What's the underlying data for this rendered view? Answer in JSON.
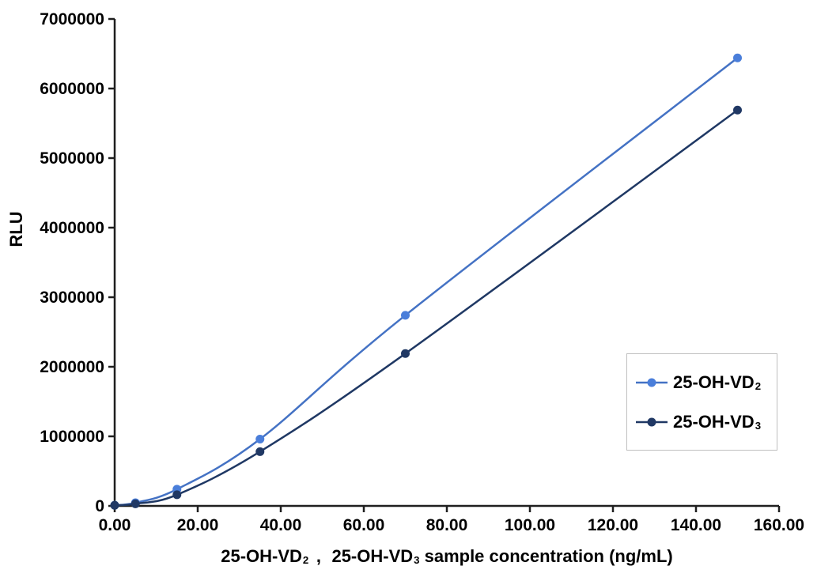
{
  "page": {
    "background": "#ffffff"
  },
  "chart_data": {
    "type": "line",
    "title": "",
    "ylabel": "RLU",
    "xlabel_segments": [
      {
        "text": "25-OH-VD"
      },
      {
        "text": "2",
        "sub": true
      },
      {
        "text": "、 25-OH-VD"
      },
      {
        "text": "3",
        "sub": true
      },
      {
        "text": " sample concentration (ng/mL)"
      }
    ],
    "x_axis": {
      "min": 0,
      "max": 160,
      "tick_values": [
        0,
        20,
        40,
        60,
        80,
        100,
        120,
        140,
        160
      ],
      "tick_labels": [
        "0.00",
        "20.00",
        "40.00",
        "60.00",
        "80.00",
        "100.00",
        "120.00",
        "140.00",
        "160.00"
      ]
    },
    "y_axis": {
      "min": 0,
      "max": 7000000,
      "tick_values": [
        0,
        1000000,
        2000000,
        3000000,
        4000000,
        5000000,
        6000000,
        7000000
      ],
      "tick_labels": [
        "0",
        "1000000",
        "2000000",
        "3000000",
        "4000000",
        "5000000",
        "6000000",
        "7000000"
      ]
    },
    "grid": false,
    "smooth_lines": true,
    "axis_color": "#1f1f1f",
    "legend": {
      "position": "right-center",
      "border_color": "#bfbfbf",
      "background": "#ffffff"
    },
    "series": [
      {
        "name_segments": [
          {
            "text": "25-OH-VD"
          },
          {
            "text": "2",
            "sub": true
          }
        ],
        "line_color": "#4472C4",
        "marker_color": "#4A7EDA",
        "marker": "circle",
        "x": [
          0,
          5,
          15,
          35,
          70,
          150
        ],
        "y": [
          10000,
          45000,
          240000,
          960000,
          2740000,
          6440000
        ]
      },
      {
        "name_segments": [
          {
            "text": "25-OH-VD"
          },
          {
            "text": "3",
            "sub": true
          }
        ],
        "line_color": "#1F3864",
        "marker_color": "#203864",
        "marker": "circle",
        "x": [
          0,
          5,
          15,
          35,
          70,
          150
        ],
        "y": [
          8000,
          30000,
          160000,
          780000,
          2190000,
          5690000
        ]
      }
    ]
  }
}
